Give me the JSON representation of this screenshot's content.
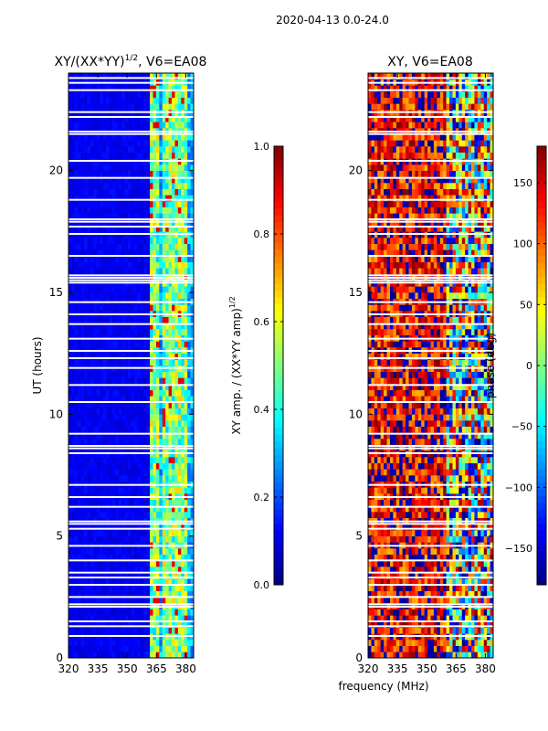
{
  "figure": {
    "suptitle": "2020-04-13 0.0-24.0",
    "shared_xlabel": "frequency (MHz)"
  },
  "chart_data": [
    {
      "type": "heatmap",
      "id": "amp",
      "title": "XY/(XX*YY)",
      "title_superscript": "1/2",
      "title_suffix": ", V6=EA08",
      "xlabel": "frequency (MHz)",
      "ylabel": "UT (hours)",
      "xlim": [
        320,
        384
      ],
      "ylim": [
        0,
        24
      ],
      "xticks": [
        320,
        335,
        350,
        365,
        380
      ],
      "yticks": [
        0,
        5,
        10,
        15,
        20
      ],
      "colormap": "jet",
      "colorbar": {
        "label": "XY amp. / (XX*YY amp)",
        "label_superscript": "1/2",
        "range": [
          0.0,
          1.0
        ],
        "ticks": [
          0.0,
          0.2,
          0.4,
          0.6,
          0.8,
          1.0
        ],
        "tick_labels": [
          "0.0",
          "0.2",
          "0.4",
          "0.6",
          "0.8",
          "1.0"
        ]
      },
      "flagged_gap_hours": [
        0.9,
        1.3,
        1.5,
        2.1,
        2.2,
        2.5,
        3.0,
        3.3,
        3.5,
        4.0,
        4.6,
        5.3,
        5.5,
        5.6,
        6.2,
        6.6,
        7.1,
        8.4,
        8.6,
        8.7,
        9.2,
        10.5,
        11.2,
        11.9,
        12.3,
        12.6,
        13.1,
        13.7,
        14.1,
        14.6,
        15.4,
        15.5,
        15.6,
        15.7,
        16.5,
        17.4,
        17.7,
        17.9,
        18.0,
        18.8,
        19.7,
        20.4,
        21.5,
        21.6,
        22.2,
        22.4,
        23.3,
        23.6,
        23.8
      ],
      "bright_band_mhz": [
        [
          362,
          367
        ],
        [
          368,
          372
        ],
        [
          373,
          377
        ],
        [
          378,
          381
        ]
      ],
      "description_levels": {
        "background": 0.08,
        "band": 0.5,
        "peak": 0.9
      }
    },
    {
      "type": "heatmap",
      "id": "phase",
      "title": "XY, V6=EA08",
      "xlabel": "frequency (MHz)",
      "ylabel": "",
      "xlim": [
        320,
        384
      ],
      "ylim": [
        0,
        24
      ],
      "xticks": [
        320,
        335,
        350,
        365,
        380
      ],
      "yticks": [
        0,
        5,
        10,
        15,
        20
      ],
      "colormap": "jet",
      "colorbar": {
        "label": "phase (deg)",
        "range": [
          -180,
          180
        ],
        "ticks": [
          -150,
          -100,
          -50,
          0,
          50,
          100,
          150
        ],
        "tick_labels": [
          "−150",
          "−100",
          "−50",
          "0",
          "50",
          "100",
          "150"
        ]
      },
      "flagged_gap_hours": [
        0.9,
        1.3,
        1.5,
        2.1,
        2.2,
        2.5,
        3.0,
        3.3,
        3.5,
        4.0,
        4.6,
        5.3,
        5.5,
        5.6,
        6.2,
        6.6,
        7.1,
        8.4,
        8.6,
        8.7,
        9.2,
        10.5,
        11.2,
        11.9,
        12.3,
        12.6,
        13.1,
        13.7,
        14.1,
        14.6,
        15.4,
        15.5,
        15.6,
        15.7,
        16.5,
        17.4,
        17.7,
        17.9,
        18.0,
        18.8,
        19.7,
        20.4,
        21.5,
        21.6,
        22.2,
        22.4,
        23.3,
        23.6,
        23.8
      ],
      "dominant_phase_deg": 140,
      "scatter_band_mhz": [
        360,
        384
      ]
    }
  ]
}
